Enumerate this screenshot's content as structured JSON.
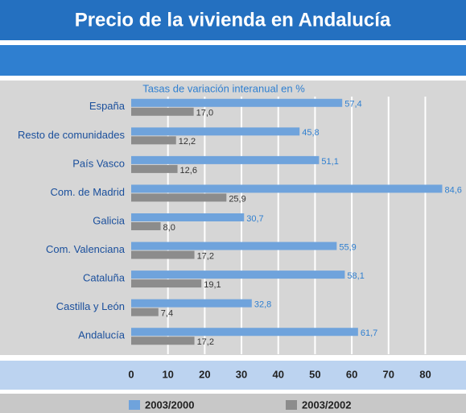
{
  "chart_data": {
    "type": "barh",
    "title": "Precio de la vivienda en Andalucía",
    "subtitle": "Tasas de variación interanual en %",
    "categories": [
      "España",
      "Resto de comunidades",
      "País Vasco",
      "Com. de Madrid",
      "Galicia",
      "Com. Valenciana",
      "Cataluña",
      "Castilla y León",
      "Andalucía"
    ],
    "series": [
      {
        "name": "2003/2000",
        "color": "#6fa3dc",
        "values": [
          57.4,
          45.8,
          51.1,
          84.6,
          30.7,
          55.9,
          58.1,
          32.8,
          61.7
        ],
        "value_labels": [
          "57,4",
          "45,8",
          "51,1",
          "84,6",
          "30,7",
          "55,9",
          "58,1",
          "32,8",
          "61,7"
        ]
      },
      {
        "name": "2003/2002",
        "color": "#8c8c8c",
        "values": [
          17.0,
          12.2,
          12.6,
          25.9,
          8.0,
          17.2,
          19.1,
          7.4,
          17.2
        ],
        "value_labels": [
          "17,0",
          "12,2",
          "12,6",
          "25,9",
          "8,0",
          "17,2",
          "19,1",
          "7,4",
          "17,2"
        ]
      }
    ],
    "xlim": [
      0,
      88
    ],
    "xticks": [
      0,
      10,
      20,
      30,
      40,
      50,
      60,
      70,
      80
    ],
    "grid": true
  }
}
